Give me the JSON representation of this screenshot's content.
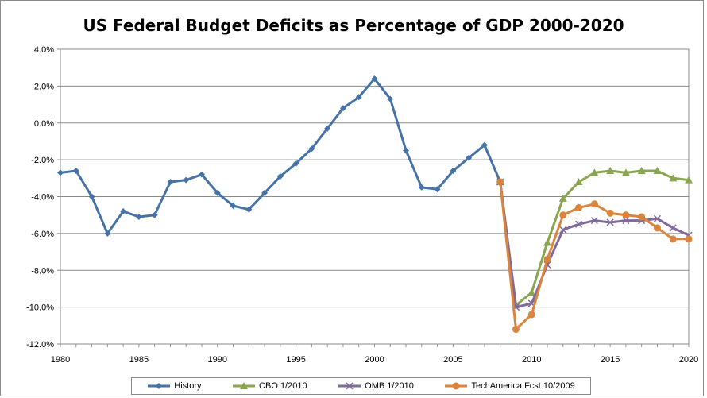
{
  "chart_data": {
    "type": "line",
    "title": "US Federal Budget Deficits as Percentage of GDP 2000-2020",
    "xlabel": "",
    "ylabel": "",
    "xlim": [
      1980,
      2020
    ],
    "ylim": [
      -12.0,
      4.0
    ],
    "x_ticks": [
      1980,
      1985,
      1990,
      1995,
      2000,
      2005,
      2010,
      2015,
      2020
    ],
    "y_ticks": [
      "4.0%",
      "2.0%",
      "0.0%",
      "-2.0%",
      "-4.0%",
      "-6.0%",
      "-8.0%",
      "-10.0%",
      "-12.0%"
    ],
    "y_tick_values": [
      4,
      2,
      0,
      -2,
      -4,
      -6,
      -8,
      -10,
      -12
    ],
    "grid": "horizontal",
    "legend_position": "bottom",
    "series": [
      {
        "name": "History",
        "color": "#4572A7",
        "marker": "diamond",
        "x": [
          1980,
          1981,
          1982,
          1983,
          1984,
          1985,
          1986,
          1987,
          1988,
          1989,
          1990,
          1991,
          1992,
          1993,
          1994,
          1995,
          1996,
          1997,
          1998,
          1999,
          2000,
          2001,
          2002,
          2003,
          2004,
          2005,
          2006,
          2007,
          2008
        ],
        "values": [
          -2.7,
          -2.6,
          -4.0,
          -6.0,
          -4.8,
          -5.1,
          -5.0,
          -3.2,
          -3.1,
          -2.8,
          -3.8,
          -4.5,
          -4.7,
          -3.8,
          -2.9,
          -2.2,
          -1.4,
          -0.3,
          0.8,
          1.4,
          2.4,
          1.3,
          -1.5,
          -3.5,
          -3.6,
          -2.6,
          -1.9,
          -1.2,
          -3.2
        ]
      },
      {
        "name": "CBO 1/2010",
        "color": "#89A54E",
        "marker": "triangle",
        "x": [
          2008,
          2009,
          2010,
          2011,
          2012,
          2013,
          2014,
          2015,
          2016,
          2017,
          2018,
          2019,
          2020
        ],
        "values": [
          -3.2,
          -9.9,
          -9.2,
          -6.5,
          -4.1,
          -3.2,
          -2.7,
          -2.6,
          -2.7,
          -2.6,
          -2.6,
          -3.0,
          -3.1
        ]
      },
      {
        "name": "OMB 1/2010",
        "color": "#80699B",
        "marker": "x",
        "x": [
          2008,
          2009,
          2010,
          2011,
          2012,
          2013,
          2014,
          2015,
          2016,
          2017,
          2018,
          2019,
          2020
        ],
        "values": [
          -3.2,
          -10.0,
          -9.8,
          -7.7,
          -5.8,
          -5.5,
          -5.3,
          -5.4,
          -5.3,
          -5.3,
          -5.2,
          -5.7,
          -6.1
        ]
      },
      {
        "name": "TechAmerica Fcst 10/2009",
        "color": "#DB843D",
        "marker": "circle",
        "x": [
          2008,
          2009,
          2010,
          2011,
          2012,
          2013,
          2014,
          2015,
          2016,
          2017,
          2018,
          2019,
          2020
        ],
        "values": [
          -3.2,
          -11.2,
          -10.4,
          -7.4,
          -5.0,
          -4.6,
          -4.4,
          -4.9,
          -5.0,
          -5.1,
          -5.7,
          -6.3,
          -6.3
        ]
      }
    ]
  }
}
